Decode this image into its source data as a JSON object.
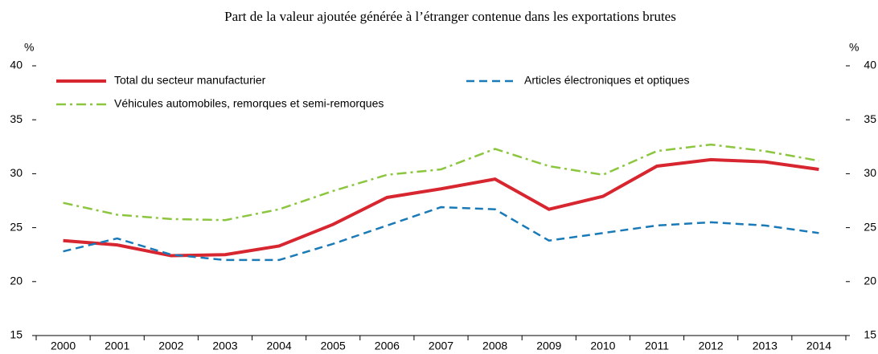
{
  "chart_data": {
    "type": "line",
    "title": "Part de la valeur ajoutée générée à l’étranger contenue dans les exportations brutes",
    "y_unit": "%",
    "categories": [
      "2000",
      "2001",
      "2002",
      "2003",
      "2004",
      "2005",
      "2006",
      "2007",
      "2008",
      "2009",
      "2010",
      "2011",
      "2012",
      "2013",
      "2014"
    ],
    "series": [
      {
        "name": "Total du secteur manufacturier",
        "color": "#d7262f",
        "dash": "solid",
        "values": [
          23.8,
          23.4,
          22.4,
          22.5,
          23.3,
          25.3,
          27.8,
          28.6,
          29.5,
          26.7,
          27.9,
          30.7,
          31.3,
          31.1,
          30.4
        ]
      },
      {
        "name": "Articles électroniques et optiques",
        "color": "#1a7ab8",
        "dash": "dashed",
        "values": [
          22.8,
          24.0,
          22.5,
          22.0,
          22.0,
          23.5,
          25.2,
          26.9,
          26.7,
          23.8,
          24.5,
          25.2,
          25.5,
          25.2,
          24.5
        ]
      },
      {
        "name": "Véhicules automobiles, remorques et semi-remorques",
        "color": "#8cc63f",
        "dash": "dashdot",
        "values": [
          27.3,
          26.2,
          25.8,
          25.7,
          26.7,
          28.4,
          29.9,
          30.4,
          32.3,
          30.7,
          29.9,
          32.1,
          32.7,
          32.1,
          31.2
        ]
      }
    ],
    "ylim": [
      15,
      40
    ],
    "yticks": [
      15,
      20,
      25,
      30,
      35,
      40
    ],
    "grid": false
  }
}
